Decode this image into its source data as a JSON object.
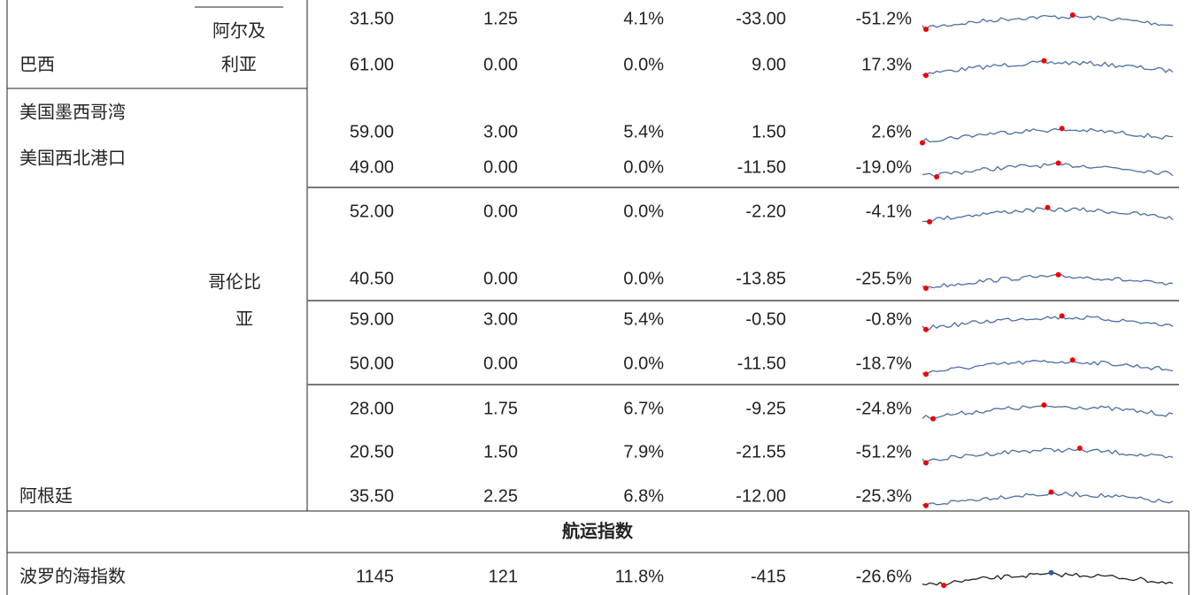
{
  "labels": {
    "algeria": [
      "阿尔及",
      "利亚"
    ],
    "brazil": "巴西",
    "us_gulf": "美国墨西哥湾",
    "us_pnw": "美国西北港口",
    "colombia": [
      "哥伦比",
      "亚"
    ],
    "argentina": "阿根廷",
    "section": "航运指数",
    "baltic": "波罗的海指数"
  },
  "rows": [
    [
      "31.50",
      "1.25",
      "4.1%",
      "-33.00",
      "-51.2%"
    ],
    [
      "61.00",
      "0.00",
      "0.0%",
      "9.00",
      "17.3%"
    ],
    [
      "59.00",
      "3.00",
      "5.4%",
      "1.50",
      "2.6%"
    ],
    [
      "49.00",
      "0.00",
      "0.0%",
      "-11.50",
      "-19.0%"
    ],
    [
      "52.00",
      "0.00",
      "0.0%",
      "-2.20",
      "-4.1%"
    ],
    [
      "40.50",
      "0.00",
      "0.0%",
      "-13.85",
      "-25.5%"
    ],
    [
      "59.00",
      "3.00",
      "5.4%",
      "-0.50",
      "-0.8%"
    ],
    [
      "50.00",
      "0.00",
      "0.0%",
      "-11.50",
      "-18.7%"
    ],
    [
      "28.00",
      "1.75",
      "6.7%",
      "-9.25",
      "-24.8%"
    ],
    [
      "20.50",
      "1.50",
      "7.9%",
      "-21.55",
      "-51.2%"
    ],
    [
      "35.50",
      "2.25",
      "6.8%",
      "-12.00",
      "-25.3%"
    ]
  ],
  "baltic_row": [
    "1145",
    "121",
    "11.8%",
    "-415",
    "-26.6%"
  ]
}
